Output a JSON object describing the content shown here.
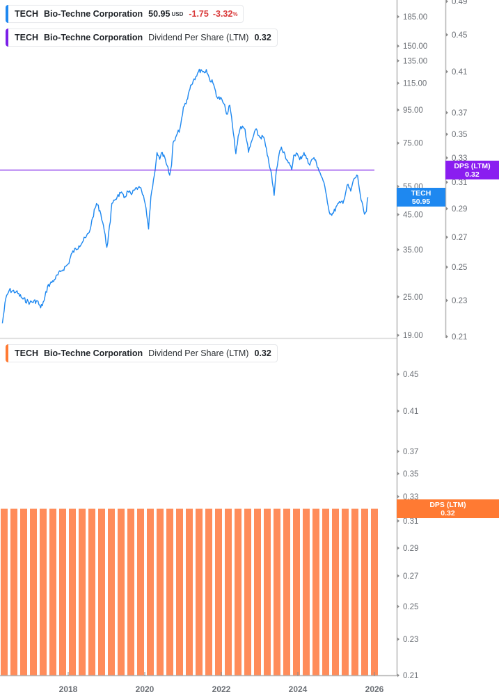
{
  "legends": {
    "price": {
      "ticker": "TECH",
      "company": "Bio-Techne Corporation",
      "price": "50.95",
      "currency": "USD",
      "change": "-1.75",
      "change_pct": "-3.32",
      "pct_symbol": "%",
      "accent_color": "#1e88f0"
    },
    "dps_upper": {
      "ticker": "TECH",
      "company": "Bio-Techne Corporation",
      "metric": "Dividend Per Share (LTM)",
      "value": "0.32",
      "accent_color": "#7b1fe8"
    },
    "dps_lower": {
      "ticker": "TECH",
      "company": "Bio-Techne Corporation",
      "metric": "Dividend Per Share (LTM)",
      "value": "0.32",
      "accent_color": "#ff7a33"
    }
  },
  "tags": {
    "price": {
      "line1": "TECH",
      "line2": "50.95",
      "color": "#1e88f0"
    },
    "dps_upper": {
      "line1": "DPS (LTM)",
      "line2": "0.32",
      "color": "#8a1df0"
    },
    "dps_lower": {
      "line1": "DPS (LTM)",
      "line2": "0.32",
      "color": "#ff7a33"
    }
  },
  "chart_data": [
    {
      "type": "line",
      "title": "TECH Bio-Techne Corporation price",
      "xlabel": "",
      "ylabel": "Price (USD)",
      "yscale": "log",
      "ylim": [
        19,
        200
      ],
      "y_ticks": [
        "185.00",
        "150.00",
        "135.00",
        "115.00",
        "95.00",
        "75.00",
        "55.00",
        "45.00",
        "35.00",
        "25.00",
        "19.00"
      ],
      "x_ticks": [
        "2018",
        "2020",
        "2022",
        "2024",
        "2026"
      ],
      "series": [
        {
          "name": "TECH",
          "color": "#1e88f0",
          "x": [
            2016.28,
            2016.37,
            2016.46,
            2016.64,
            2016.82,
            2017.0,
            2017.19,
            2017.28,
            2017.37,
            2017.46,
            2017.64,
            2017.82,
            2018.0,
            2018.1,
            2018.28,
            2018.46,
            2018.55,
            2018.64,
            2018.74,
            2018.83,
            2018.92,
            2019.01,
            2019.1,
            2019.14,
            2019.19,
            2019.28,
            2019.37,
            2019.46,
            2019.56,
            2019.65,
            2019.74,
            2019.83,
            2019.92,
            2020.01,
            2020.1,
            2020.16,
            2020.25,
            2020.32,
            2020.39,
            2020.46,
            2020.56,
            2020.65,
            2020.7,
            2020.74,
            2020.83,
            2020.92,
            2021.01,
            2021.1,
            2021.2,
            2021.29,
            2021.38,
            2021.47,
            2021.56,
            2021.61,
            2021.69,
            2021.78,
            2021.85,
            2021.89,
            2021.92,
            2022.02,
            2022.11,
            2022.16,
            2022.22,
            2022.29,
            2022.38,
            2022.44,
            2022.51,
            2022.62,
            2022.71,
            2022.82,
            2022.89,
            2023.0,
            2023.11,
            2023.2,
            2023.29,
            2023.38,
            2023.44,
            2023.51,
            2023.57,
            2023.66,
            2023.75,
            2023.84,
            2023.89,
            2023.96,
            2024.05,
            2024.16,
            2024.29,
            2024.42,
            2024.53,
            2024.66,
            2024.75,
            2024.84,
            2024.93,
            2025.02,
            2025.11,
            2025.2,
            2025.29,
            2025.38,
            2025.47,
            2025.56,
            2025.65,
            2025.74,
            2025.79,
            2025.83
          ],
          "values": [
            20.7,
            24.7,
            26.2,
            25.9,
            24.6,
            24.0,
            24.3,
            23.1,
            24.3,
            26.9,
            28.3,
            30.1,
            31.6,
            34.2,
            36.0,
            38.2,
            39.6,
            44.1,
            48.7,
            46.3,
            41.7,
            35.6,
            42.7,
            48.7,
            49.9,
            51.1,
            52.5,
            50.7,
            53.1,
            51.9,
            53.7,
            54.6,
            53.2,
            48.7,
            40.6,
            51.1,
            59.6,
            70.1,
            66.8,
            70.1,
            64.8,
            59.6,
            64.0,
            75.3,
            79.2,
            83.2,
            97.0,
            102.1,
            113.5,
            118.7,
            123.7,
            126.8,
            123.9,
            126.8,
            118.7,
            115.2,
            108.8,
            104.0,
            103.5,
            102.1,
            95.4,
            92.2,
            98.3,
            85.5,
            69.5,
            78.8,
            84.4,
            82.7,
            70.2,
            77.6,
            82.6,
            78.3,
            78.2,
            68.8,
            61.9,
            51.6,
            61.9,
            69.3,
            72.9,
            69.3,
            65.1,
            61.9,
            68.7,
            69.9,
            66.6,
            70.1,
            64.6,
            67.6,
            62.9,
            57.3,
            51.3,
            45.1,
            45.5,
            48.0,
            48.9,
            49.8,
            55.6,
            53.2,
            58.2,
            59.4,
            49.9,
            45.1,
            46.0,
            50.95
          ]
        },
        {
          "name": "Dividend Per Share (LTM)",
          "color": "#7b1fe8",
          "axis": "secondary",
          "ylim": [
            0.21,
            0.49
          ],
          "y_ticks": [
            "0.49",
            "0.45",
            "0.41",
            "0.37",
            "0.35",
            "0.33",
            "0.31",
            "0.29",
            "0.27",
            "0.25",
            "0.23",
            "0.21"
          ],
          "x": [
            2016.2,
            2026.0
          ],
          "values": [
            0.32,
            0.32
          ]
        }
      ]
    },
    {
      "type": "bar",
      "title": "TECH Bio-Techne Corporation Dividend Per Share (LTM)",
      "xlabel": "",
      "ylabel": "DPS (LTM)",
      "ylim": [
        0.21,
        0.47
      ],
      "y_ticks": [
        "0.45",
        "0.41",
        "0.37",
        "0.35",
        "0.33",
        "0.31",
        "0.29",
        "0.27",
        "0.25",
        "0.23",
        "0.21"
      ],
      "x_ticks": [
        "2018",
        "2020",
        "2022",
        "2024",
        "2026"
      ],
      "grid": false,
      "series": [
        {
          "name": "Dividend Per Share (LTM)",
          "color": "#ff8c5a",
          "categories": [
            "2016Q2",
            "2016Q3",
            "2016Q4",
            "2017Q1",
            "2017Q2",
            "2017Q3",
            "2017Q4",
            "2018Q1",
            "2018Q2",
            "2018Q3",
            "2018Q4",
            "2019Q1",
            "2019Q2",
            "2019Q3",
            "2019Q4",
            "2020Q1",
            "2020Q2",
            "2020Q3",
            "2020Q4",
            "2021Q1",
            "2021Q2",
            "2021Q3",
            "2021Q4",
            "2022Q1",
            "2022Q2",
            "2022Q3",
            "2022Q4",
            "2023Q1",
            "2023Q2",
            "2023Q3",
            "2023Q4",
            "2024Q1",
            "2024Q2",
            "2024Q3",
            "2024Q4",
            "2025Q1",
            "2025Q2",
            "2025Q3",
            "2025Q4"
          ],
          "values": [
            0.32,
            0.32,
            0.32,
            0.32,
            0.32,
            0.32,
            0.32,
            0.32,
            0.32,
            0.32,
            0.32,
            0.32,
            0.32,
            0.32,
            0.32,
            0.32,
            0.32,
            0.32,
            0.32,
            0.32,
            0.32,
            0.32,
            0.32,
            0.32,
            0.32,
            0.32,
            0.32,
            0.32,
            0.32,
            0.32,
            0.32,
            0.32,
            0.32,
            0.32,
            0.32,
            0.32,
            0.32,
            0.32,
            0.32
          ]
        }
      ]
    }
  ]
}
